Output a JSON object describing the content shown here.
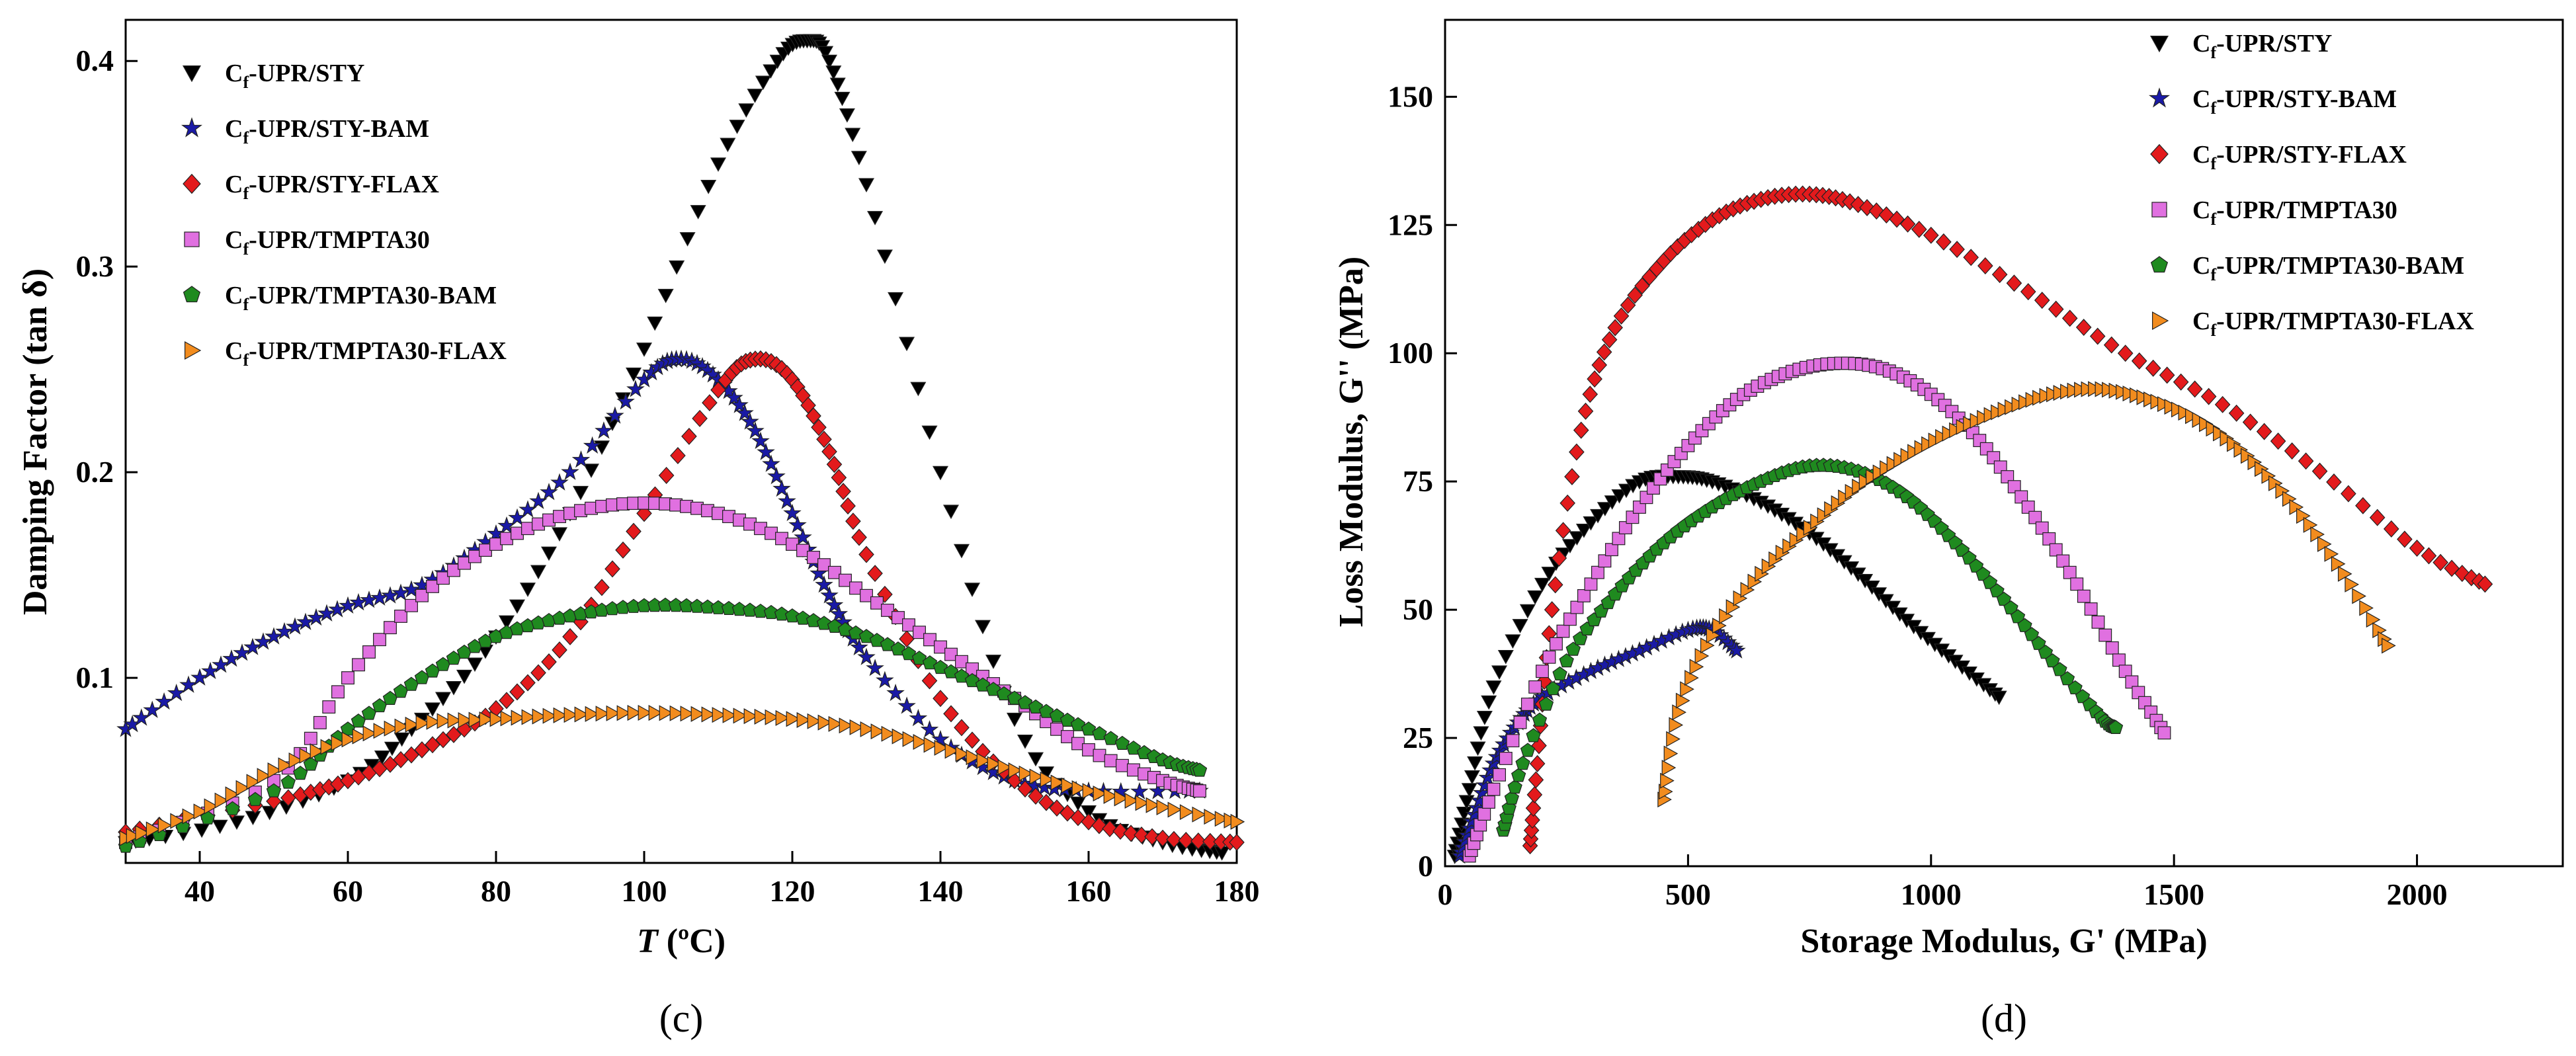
{
  "panels": [
    {
      "panel_label": "(c)",
      "legend": [
        {
          "prefix": "C",
          "sub": "f",
          "suffix": "-UPR/STY"
        },
        {
          "prefix": "C",
          "sub": "f",
          "suffix": "-UPR/STY-BAM"
        },
        {
          "prefix": "C",
          "sub": "f",
          "suffix": "-UPR/STY-FLAX"
        },
        {
          "prefix": "C",
          "sub": "f",
          "suffix": "-UPR/TMPTA30"
        },
        {
          "prefix": "C",
          "sub": "f",
          "suffix": "-UPR/TMPTA30-BAM"
        },
        {
          "prefix": "C",
          "sub": "f",
          "suffix": "-UPR/TMPTA30-FLAX"
        }
      ],
      "ylabel_text": "Damping Factor (tan δ)",
      "xlabel_italic": "T",
      "xlabel_rest": " (ºC)"
    },
    {
      "panel_label": "(d)",
      "legend": [
        {
          "prefix": "C",
          "sub": "f",
          "suffix": "-UPR/STY"
        },
        {
          "prefix": "C",
          "sub": "f",
          "suffix": "-UPR/STY-BAM"
        },
        {
          "prefix": "C",
          "sub": "f",
          "suffix": "-UPR/STY-FLAX"
        },
        {
          "prefix": "C",
          "sub": "f",
          "suffix": "-UPR/TMPTA30"
        },
        {
          "prefix": "C",
          "sub": "f",
          "suffix": "-UPR/TMPTA30-BAM"
        },
        {
          "prefix": "C",
          "sub": "f",
          "suffix": "-UPR/TMPTA30-FLAX"
        }
      ],
      "ylabel_text": "Loss Modulus, G'' (MPa)",
      "xlabel_text": "Storage Modulus, G' (MPa)"
    }
  ],
  "chart_data": [
    {
      "type": "scatter",
      "panel": "c",
      "xlabel": "T (ºC)",
      "ylabel": "Damping Factor (tan δ)",
      "xlim": [
        30,
        180
      ],
      "ylim": [
        0.01,
        0.42
      ],
      "xticks": [
        "40",
        "60",
        "80",
        "100",
        "120",
        "140",
        "160",
        "180"
      ],
      "yticks": [
        "0.1",
        "0.2",
        "0.3",
        "0.4"
      ],
      "legend_position": "top-left",
      "series": [
        {
          "name": "Cf-UPR/STY",
          "marker": "triangle-down",
          "color": "#000000",
          "x": [
            30,
            45,
            60,
            70,
            80,
            90,
            100,
            110,
            118,
            122,
            125,
            130,
            140,
            150,
            160,
            170,
            178
          ],
          "y": [
            0.02,
            0.03,
            0.05,
            0.08,
            0.12,
            0.18,
            0.26,
            0.35,
            0.4,
            0.41,
            0.4,
            0.34,
            0.2,
            0.08,
            0.035,
            0.02,
            0.015
          ]
        },
        {
          "name": "Cf-UPR/STY-BAM",
          "marker": "star",
          "color": "#1a1aa6",
          "x": [
            30,
            40,
            50,
            60,
            70,
            80,
            90,
            100,
            105,
            110,
            115,
            120,
            125,
            130,
            140,
            150,
            160,
            175
          ],
          "y": [
            0.075,
            0.1,
            0.12,
            0.135,
            0.145,
            0.17,
            0.2,
            0.245,
            0.255,
            0.245,
            0.22,
            0.18,
            0.14,
            0.11,
            0.07,
            0.05,
            0.045,
            0.045
          ]
        },
        {
          "name": "Cf-UPR/STY-FLAX",
          "marker": "diamond",
          "color": "#e31a1c",
          "x": [
            30,
            50,
            60,
            70,
            80,
            90,
            100,
            110,
            115,
            120,
            125,
            130,
            140,
            150,
            160,
            170,
            180
          ],
          "y": [
            0.025,
            0.04,
            0.05,
            0.065,
            0.085,
            0.12,
            0.18,
            0.24,
            0.255,
            0.245,
            0.21,
            0.16,
            0.09,
            0.05,
            0.03,
            0.022,
            0.02
          ]
        },
        {
          "name": "Cf-UPR/TMPTA30",
          "marker": "square",
          "color": "#e070e0",
          "x": [
            30,
            50,
            60,
            70,
            80,
            90,
            100,
            110,
            120,
            130,
            140,
            150,
            160,
            170,
            175
          ],
          "y": [
            0.02,
            0.05,
            0.1,
            0.14,
            0.165,
            0.18,
            0.185,
            0.18,
            0.165,
            0.14,
            0.115,
            0.09,
            0.065,
            0.05,
            0.045
          ]
        },
        {
          "name": "Cf-UPR/TMPTA30-BAM",
          "marker": "pentagon",
          "color": "#1f8a1f",
          "x": [
            30,
            50,
            60,
            70,
            80,
            90,
            100,
            110,
            120,
            130,
            140,
            150,
            160,
            170,
            175
          ],
          "y": [
            0.018,
            0.045,
            0.075,
            0.1,
            0.12,
            0.13,
            0.135,
            0.134,
            0.13,
            0.12,
            0.105,
            0.09,
            0.075,
            0.06,
            0.055
          ]
        },
        {
          "name": "Cf-UPR/TMPTA30-FLAX",
          "marker": "triangle-right",
          "color": "#f28c1e",
          "x": [
            30,
            40,
            50,
            60,
            70,
            80,
            90,
            100,
            110,
            120,
            130,
            140,
            150,
            160,
            170,
            180
          ],
          "y": [
            0.022,
            0.035,
            0.055,
            0.07,
            0.078,
            0.08,
            0.082,
            0.083,
            0.082,
            0.08,
            0.075,
            0.066,
            0.055,
            0.045,
            0.037,
            0.03
          ]
        }
      ]
    },
    {
      "type": "scatter",
      "panel": "d",
      "xlabel": "Storage Modulus, G' (MPa)",
      "ylabel": "Loss Modulus, G'' (MPa)",
      "xlim": [
        0,
        2300
      ],
      "ylim": [
        0,
        165
      ],
      "xticks": [
        "0",
        "500",
        "1000",
        "1500",
        "2000"
      ],
      "yticks": [
        "0",
        "25",
        "50",
        "75",
        "100",
        "125",
        "150"
      ],
      "legend_position": "top-right",
      "series": [
        {
          "name": "Cf-UPR/STY",
          "marker": "triangle-down",
          "color": "#000000",
          "x": [
            20,
            50,
            100,
            200,
            300,
            400,
            480,
            550,
            650,
            750,
            850,
            950,
            1050,
            1140
          ],
          "y": [
            2,
            15,
            35,
            55,
            67,
            75,
            76,
            75,
            71,
            65,
            57,
            48,
            40,
            33
          ]
        },
        {
          "name": "Cf-UPR/STY-BAM",
          "marker": "star",
          "color": "#1a1aa6",
          "x": [
            30,
            60,
            100,
            150,
            200,
            300,
            400,
            500,
            550,
            600
          ],
          "y": [
            2,
            10,
            20,
            28,
            33,
            38,
            42,
            46,
            46,
            42
          ]
        },
        {
          "name": "Cf-UPR/STY-FLAX",
          "marker": "diamond",
          "color": "#e31a1c",
          "x": [
            175,
            190,
            220,
            280,
            350,
            450,
            550,
            650,
            750,
            850,
            1000,
            1200,
            1400,
            1600,
            1800,
            2000,
            2140
          ],
          "y": [
            4,
            20,
            50,
            85,
            105,
            118,
            126,
            130,
            131,
            129,
            123,
            112,
            100,
            90,
            77,
            62,
            55
          ]
        },
        {
          "name": "Cf-UPR/TMPTA30",
          "marker": "square",
          "color": "#e070e0",
          "x": [
            50,
            100,
            200,
            300,
            400,
            500,
            600,
            700,
            800,
            900,
            1000,
            1100,
            1200,
            1300,
            1400,
            1480
          ],
          "y": [
            2,
            15,
            38,
            55,
            70,
            82,
            91,
            96,
            98,
            97,
            92,
            83,
            70,
            55,
            38,
            26
          ]
        },
        {
          "name": "Cf-UPR/TMPTA30-BAM",
          "marker": "pentagon",
          "color": "#1f8a1f",
          "x": [
            120,
            160,
            250,
            350,
            450,
            550,
            650,
            750,
            850,
            950,
            1050,
            1150,
            1250,
            1350,
            1380
          ],
          "y": [
            7,
            20,
            40,
            53,
            63,
            70,
            75,
            78,
            77,
            72,
            63,
            52,
            40,
            29,
            27
          ]
        },
        {
          "name": "Cf-UPR/TMPTA30-FLAX",
          "marker": "triangle-right",
          "color": "#f28c1e",
          "x": [
            450,
            480,
            550,
            650,
            750,
            850,
            950,
            1050,
            1150,
            1250,
            1350,
            1450,
            1550,
            1650,
            1750,
            1850,
            1940
          ],
          "y": [
            13,
            30,
            45,
            57,
            66,
            74,
            80,
            85,
            89,
            92,
            93,
            91,
            87,
            80,
            70,
            57,
            43
          ]
        }
      ]
    }
  ]
}
